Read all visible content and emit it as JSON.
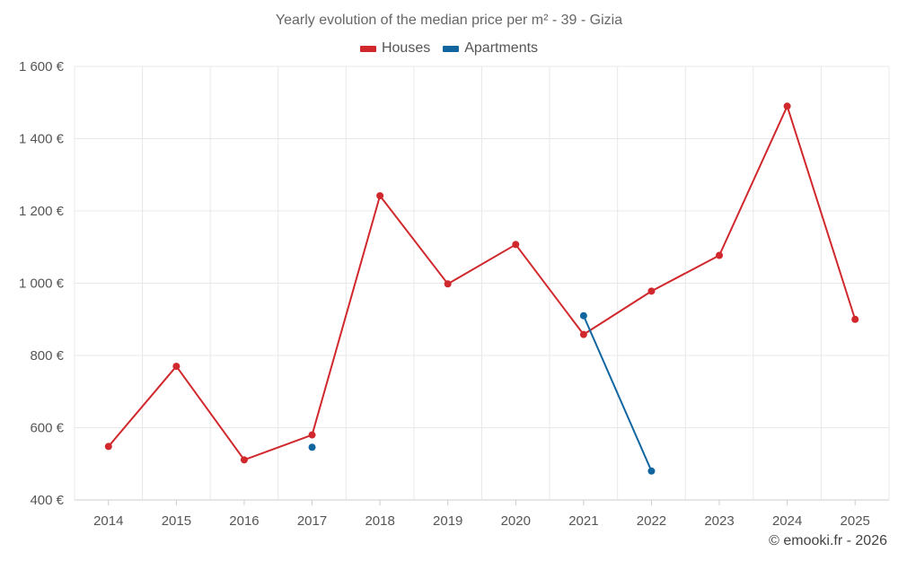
{
  "colors": {
    "houses": "#d0282c",
    "apartments": "#1166a0",
    "grid": "#e8e8e8",
    "axis": "#cccccc"
  },
  "credit": "© emooki.fr - 2026",
  "chart_data": {
    "type": "line",
    "title": "Yearly evolution of the median price per m² - 39 - Gizia",
    "categories": [
      "2014",
      "2015",
      "2016",
      "2017",
      "2018",
      "2019",
      "2020",
      "2021",
      "2022",
      "2023",
      "2024",
      "2025"
    ],
    "ylim": [
      400,
      1600
    ],
    "yticks": [
      400,
      600,
      800,
      1000,
      1200,
      1400,
      1600
    ],
    "ytick_labels": [
      "400 €",
      "600 €",
      "800 €",
      "1 000 €",
      "1 200 €",
      "1 400 €",
      "1 600 €"
    ],
    "legend_position": "top-center",
    "series": [
      {
        "name": "Houses",
        "color": "#d0282c",
        "values": [
          548,
          770,
          511,
          580,
          1242,
          998,
          1107,
          858,
          978,
          1077,
          1490,
          900
        ]
      },
      {
        "name": "Apartments",
        "color": "#1166a0",
        "values": [
          null,
          null,
          null,
          546,
          null,
          null,
          null,
          910,
          480,
          null,
          null,
          null
        ]
      }
    ]
  }
}
